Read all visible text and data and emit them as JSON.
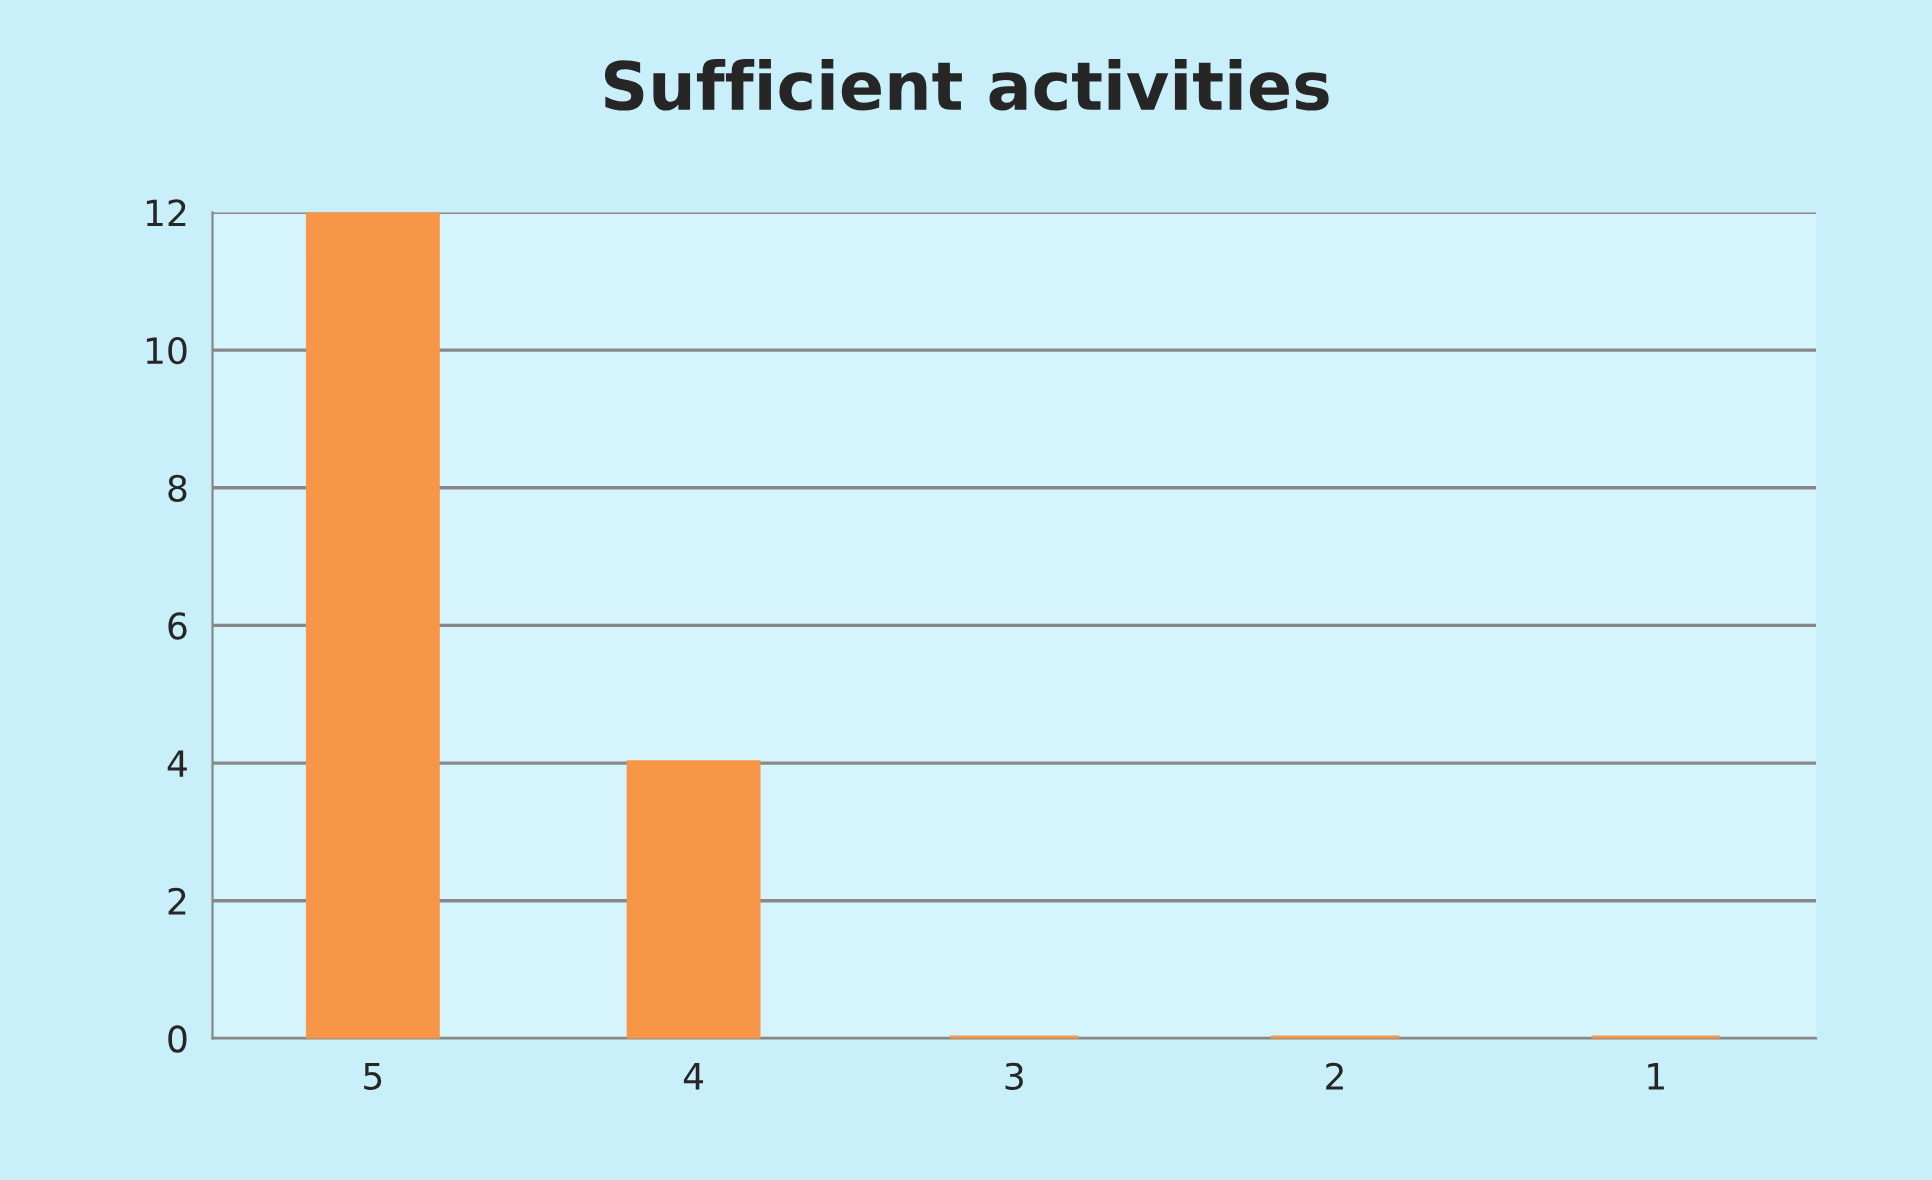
{
  "chart_data": {
    "type": "bar",
    "title": "Sufficient activities",
    "categories": [
      "5",
      "4",
      "3",
      "2",
      "1"
    ],
    "values": [
      12,
      4,
      0,
      0,
      0
    ],
    "color": "#f79646",
    "ylim": [
      0,
      12
    ],
    "yticks": [
      0,
      2,
      4,
      6,
      8,
      10,
      12
    ],
    "grid": "y"
  }
}
